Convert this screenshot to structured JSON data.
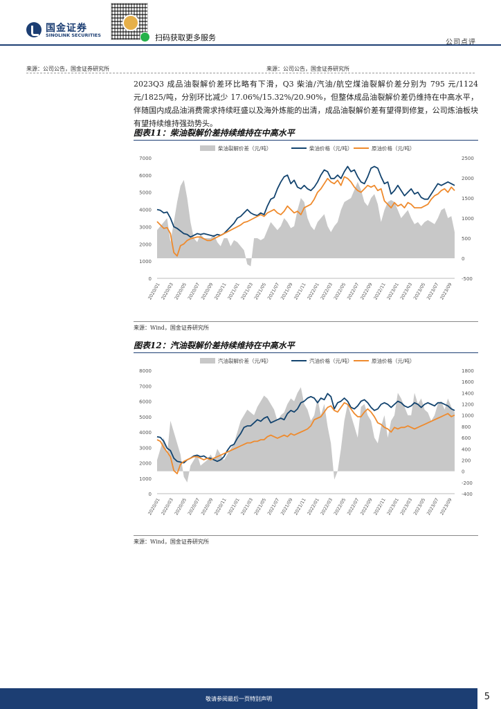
{
  "header": {
    "logo_cn": "国金证券",
    "logo_en": "SINOLINK SECURITIES",
    "scan_text": "扫码获取更多服务",
    "doc_type": "公司点评"
  },
  "source_top_left": "来源：公司公告，国金证券研究所",
  "source_top_right": "来源：公司公告，国金证券研究所",
  "paragraph": "2023Q3 成品油裂解价差环比略有下滑，Q3 柴油/汽油/航空煤油裂解价差分别为 795 元/1124 元/1825/吨，分别环比减少 17.06%/15.32%/20.90%，但整体成品油裂解价差仍维持在中高水平，伴随国内成品油消费需求持续旺盛以及海外炼能的出清，成品油裂解价差有望得到修复，公司炼油板块有望持续维持强劲势头。",
  "figures": [
    {
      "title": "图表11：柴油裂解价差持续维持在中高水平",
      "source": "来源：Wind，国金证券研究所"
    },
    {
      "title": "图表12：汽油裂解价差持续维持在中高水平",
      "source": "来源：Wind，国金证券研究所"
    }
  ],
  "chart_data": [
    {
      "type": "line",
      "title": "图表11：柴油裂解价差持续维持在中高水平",
      "legend": [
        "柴油裂解价差（元/吨）",
        "柴油价格（元/吨）",
        "原油价格（元/吨）"
      ],
      "legend_position": "top",
      "x_tick_labels": [
        "2020/01",
        "2020/03",
        "2020/05",
        "2020/07",
        "2020/09",
        "2020/11",
        "2021/01",
        "2021/03",
        "2021/05",
        "2021/07",
        "2021/09",
        "2021/11",
        "2022/01",
        "2022/03",
        "2022/05",
        "2022/07",
        "2022/09",
        "2022/11",
        "2023/01",
        "2023/03",
        "2023/05",
        "2023/07",
        "2023/09"
      ],
      "y_left": {
        "ticks": [
          "0",
          "1000",
          "2000",
          "3000",
          "4000",
          "5000",
          "6000",
          "7000"
        ],
        "min": 0,
        "max": 7000
      },
      "y_right": {
        "ticks": [
          "-500",
          "0",
          "500",
          "1000",
          "1500",
          "2000",
          "2500"
        ],
        "min": -500,
        "max": 2500
      },
      "x": [
        0,
        0.5,
        1,
        1.5,
        2,
        2.5,
        3,
        3.5,
        4,
        4.5,
        5,
        5.5,
        6,
        6.5,
        7,
        7.5,
        8,
        8.5,
        9,
        9.5,
        10,
        10.5,
        11,
        11.5,
        12,
        12.5,
        13,
        13.5,
        14,
        14.5,
        15,
        15.5,
        16,
        16.5,
        17,
        17.5,
        18,
        18.5,
        19,
        19.5,
        20,
        20.5,
        21,
        21.5,
        22,
        22.5,
        23,
        23.5,
        24,
        24.5,
        25,
        25.5,
        26,
        26.5,
        27,
        27.5,
        28,
        28.5,
        29,
        29.5,
        30,
        30.5,
        31,
        31.5,
        32,
        32.5,
        33,
        33.5,
        34,
        34.5,
        35,
        35.5,
        36,
        36.5,
        37,
        37.5,
        38,
        38.5,
        39,
        39.5,
        40,
        40.5,
        41,
        41.5,
        42,
        42.5,
        43,
        43.5,
        44,
        44.5
      ],
      "series": [
        {
          "name": "柴油裂解价差（元/吨）",
          "axis": "right",
          "style": "area",
          "color": "#c8c8c8",
          "values": [
            700,
            800,
            900,
            1000,
            400,
            900,
            1400,
            1800,
            1950,
            1500,
            900,
            500,
            400,
            600,
            500,
            500,
            500,
            600,
            400,
            300,
            500,
            500,
            300,
            450,
            400,
            300,
            200,
            -150,
            -200,
            500,
            500,
            450,
            500,
            700,
            900,
            800,
            700,
            800,
            1000,
            900,
            750,
            800,
            1200,
            1500,
            1400,
            1000,
            800,
            700,
            900,
            1000,
            1100,
            800,
            650,
            800,
            900,
            1200,
            1400,
            1450,
            1500,
            1700,
            1900,
            1700,
            1400,
            1300,
            1500,
            1600,
            1350,
            900,
            1200,
            1400,
            1450,
            1400,
            1200,
            1000,
            1100,
            1200,
            1000,
            850,
            900,
            800,
            900,
            950,
            900,
            850,
            1000,
            1200,
            1250,
            1000,
            1050,
            650
          ]
        },
        {
          "name": "柴油价格（元/吨）",
          "axis": "left",
          "style": "line",
          "color": "#12436e",
          "values": [
            4000,
            3950,
            3800,
            3850,
            3500,
            3000,
            2900,
            2750,
            2600,
            2550,
            2400,
            2500,
            2600,
            2550,
            2600,
            2550,
            2500,
            2450,
            2550,
            2500,
            2600,
            2800,
            3000,
            3200,
            3500,
            3600,
            3800,
            4000,
            3800,
            3700,
            3650,
            3800,
            3700,
            4200,
            4600,
            4700,
            5200,
            5600,
            5900,
            6000,
            5500,
            5700,
            5300,
            5200,
            5400,
            5200,
            5100,
            5300,
            5600,
            6000,
            6300,
            6200,
            5800,
            5800,
            6000,
            5800,
            6200,
            6500,
            6200,
            6300,
            5900,
            5600,
            5500,
            5900,
            6400,
            6500,
            6400,
            5900,
            5500,
            5600,
            4900,
            5100,
            5400,
            5100,
            4800,
            5000,
            5200,
            4900,
            5000,
            4700,
            4600,
            4600,
            4900,
            5200,
            5500,
            5400,
            5500,
            5600,
            5500,
            5400
          ]
        },
        {
          "name": "原油价格（元/吨）",
          "axis": "left",
          "style": "line",
          "color": "#ef8a2c",
          "values": [
            3300,
            3100,
            2900,
            2950,
            2600,
            1500,
            1300,
            1900,
            2000,
            2200,
            2300,
            2350,
            2400,
            2400,
            2300,
            2200,
            2200,
            2300,
            2400,
            2500,
            2600,
            2700,
            2800,
            2900,
            3000,
            3100,
            3250,
            3300,
            3400,
            3500,
            3600,
            3700,
            3600,
            3800,
            3900,
            4000,
            3800,
            3700,
            3900,
            4200,
            4000,
            3800,
            3900,
            3700,
            4100,
            4200,
            4300,
            4600,
            5000,
            5200,
            5500,
            5800,
            5600,
            5500,
            5700,
            5400,
            5900,
            5800,
            5600,
            5300,
            5100,
            5000,
            5200,
            5400,
            5300,
            5400,
            5100,
            5200,
            4500,
            4300,
            4100,
            4400,
            4200,
            4300,
            4100,
            4400,
            4300,
            4100,
            4100,
            4100,
            4200,
            4300,
            4600,
            4800,
            4900,
            5100,
            5200,
            5000,
            5300,
            5100
          ]
        }
      ]
    },
    {
      "type": "line",
      "title": "图表12：汽油裂解价差持续维持在中高水平",
      "legend": [
        "汽油裂解价差（元/吨）",
        "汽油价格（元/吨）",
        "原油价格（元/吨）"
      ],
      "legend_position": "top",
      "x_tick_labels": [
        "2020/01",
        "2020/03",
        "2020/05",
        "2020/07",
        "2020/09",
        "2020/11",
        "2021/01",
        "2021/03",
        "2021/05",
        "2021/07",
        "2021/09",
        "2021/11",
        "2022/01",
        "2022/03",
        "2022/05",
        "2022/07",
        "2022/09",
        "2022/11",
        "2023/01",
        "2023/03",
        "2023/05",
        "2023/07",
        "2023/09"
      ],
      "y_left": {
        "ticks": [
          "0",
          "1000",
          "2000",
          "3000",
          "4000",
          "5000",
          "6000",
          "7000",
          "8000"
        ],
        "min": 0,
        "max": 8000
      },
      "y_right": {
        "ticks": [
          "-400",
          "-200",
          "0",
          "200",
          "400",
          "600",
          "800",
          "1000",
          "1200",
          "1400",
          "1600",
          "1800"
        ],
        "min": -400,
        "max": 1800
      },
      "x": [
        0,
        0.5,
        1,
        1.5,
        2,
        2.5,
        3,
        3.5,
        4,
        4.5,
        5,
        5.5,
        6,
        6.5,
        7,
        7.5,
        8,
        8.5,
        9,
        9.5,
        10,
        10.5,
        11,
        11.5,
        12,
        12.5,
        13,
        13.5,
        14,
        14.5,
        15,
        15.5,
        16,
        16.5,
        17,
        17.5,
        18,
        18.5,
        19,
        19.5,
        20,
        20.5,
        21,
        21.5,
        22,
        22.5,
        23,
        23.5,
        24,
        24.5,
        25,
        25.5,
        26,
        26.5,
        27,
        27.5,
        28,
        28.5,
        29,
        29.5,
        30,
        30.5,
        31,
        31.5,
        32,
        32.5,
        33,
        33.5,
        34,
        34.5,
        35,
        35.5,
        36,
        36.5,
        37,
        37.5,
        38,
        38.5,
        39,
        39.5,
        40,
        40.5,
        41,
        41.5,
        42,
        42.5,
        43,
        43.5,
        44,
        44.5
      ],
      "series": [
        {
          "name": "汽油裂解价差（元/吨）",
          "axis": "right",
          "style": "area",
          "color": "#c8c8c8",
          "values": [
            200,
            400,
            600,
            300,
            900,
            700,
            500,
            300,
            -100,
            -200,
            100,
            200,
            300,
            100,
            150,
            200,
            300,
            200,
            400,
            300,
            200,
            300,
            400,
            500,
            700,
            900,
            1000,
            1100,
            1050,
            1000,
            1150,
            1250,
            1350,
            1300,
            1200,
            1100,
            900,
            1000,
            1050,
            1200,
            1300,
            1250,
            1400,
            1500,
            1200,
            1100,
            900,
            1000,
            1300,
            1000,
            1200,
            800,
            500,
            -150,
            0,
            400,
            900,
            1200,
            1000,
            800,
            600,
            1150,
            1200,
            1000,
            900,
            600,
            500,
            800,
            1000,
            600,
            900,
            1000,
            1400,
            1300,
            1150,
            1000,
            1000,
            1400,
            1200,
            1300,
            1100,
            1050,
            900,
            1000,
            1200,
            1250,
            1100,
            1300,
            1150,
            1050
          ]
        },
        {
          "name": "汽油价格（元/吨）",
          "axis": "left",
          "style": "line",
          "color": "#12436e",
          "values": [
            3700,
            3650,
            3400,
            2950,
            2800,
            2300,
            2100,
            2050,
            2000,
            2200,
            2300,
            2450,
            2500,
            2400,
            2450,
            2300,
            2300,
            2200,
            2100,
            2200,
            2400,
            2800,
            3100,
            3200,
            3600,
            3900,
            4300,
            4400,
            4400,
            4600,
            4800,
            4700,
            4900,
            5000,
            4600,
            4700,
            4800,
            4900,
            4800,
            5200,
            5400,
            5300,
            5500,
            5900,
            6000,
            6200,
            6300,
            6200,
            5900,
            6200,
            6100,
            6500,
            6300,
            5500,
            5900,
            6000,
            6200,
            6000,
            5600,
            5500,
            5700,
            6000,
            6100,
            5900,
            5600,
            5400,
            5500,
            5800,
            5900,
            5800,
            5600,
            5800,
            6000,
            5900,
            5700,
            5600,
            5700,
            5900,
            5800,
            5600,
            5800,
            5900,
            5800,
            5700,
            5900,
            5900,
            5800,
            5700,
            5500,
            5400
          ]
        },
        {
          "name": "原油价格（元/吨）",
          "axis": "left",
          "style": "line",
          "color": "#ef8a2c",
          "values": [
            3500,
            3400,
            3000,
            2700,
            2400,
            1500,
            1300,
            1900,
            2100,
            2200,
            2300,
            2400,
            2400,
            2300,
            2200,
            2300,
            2200,
            2300,
            2400,
            2500,
            2600,
            2700,
            2800,
            2900,
            3000,
            3100,
            3200,
            3300,
            3300,
            3400,
            3400,
            3500,
            3500,
            3700,
            3800,
            3700,
            3600,
            3700,
            3800,
            3700,
            3900,
            3800,
            3900,
            4000,
            4100,
            4200,
            4400,
            4800,
            4900,
            5000,
            5300,
            5600,
            5700,
            5400,
            5300,
            5600,
            5900,
            5800,
            5500,
            5200,
            5000,
            5000,
            5300,
            5500,
            5300,
            5000,
            4600,
            4500,
            4300,
            4200,
            4000,
            4300,
            4200,
            4300,
            4300,
            4400,
            4300,
            4200,
            4300,
            4400,
            4500,
            4600,
            4700,
            4800,
            4900,
            5000,
            5100,
            5200,
            5000,
            5100
          ]
        }
      ]
    }
  ],
  "footer": {
    "text": "敬请参阅最后一页特别声明",
    "page_number": "5"
  }
}
